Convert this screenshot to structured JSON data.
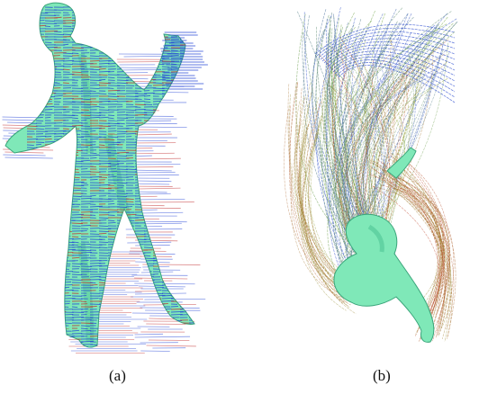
{
  "figure": {
    "panels": [
      {
        "label": "(a)"
      },
      {
        "label": "(b)"
      }
    ],
    "colors": {
      "surface": "#7fe8b8",
      "surface_dark": "#43b98a",
      "vector_blue": "#1f3fd6",
      "vector_red": "#c0282a",
      "streamline_blue": "#2f4fd0",
      "streamline_green": "#7fb52f",
      "streamline_red": "#c0402a"
    }
  }
}
